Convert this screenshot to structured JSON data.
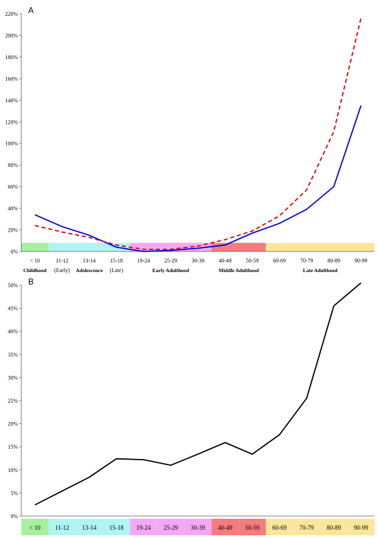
{
  "chart_data": [
    {
      "panel_label": "A",
      "type": "line",
      "x": [
        "< 10",
        "11-12",
        "13-14",
        "15-18",
        "19-24",
        "25-29",
        "30-39",
        "40-49",
        "50-59",
        "60-69",
        "70-79",
        "80-89",
        "90-99"
      ],
      "x_sub": [
        "",
        "(Early)",
        "",
        "(Late)",
        "",
        "",
        "",
        "",
        "",
        "",
        "",
        "",
        ""
      ],
      "groups": [
        {
          "label": "Childhood",
          "start": 0,
          "end": 0,
          "color": "#a8f0a0"
        },
        {
          "label": "Adolescence",
          "start": 1,
          "end": 3,
          "color": "#b0f4f4"
        },
        {
          "label": "Early Adulthood",
          "start": 4,
          "end": 6,
          "color": "#f4a8f4"
        },
        {
          "label": "Middle Adulthood",
          "start": 7,
          "end": 8,
          "color": "#f47c7c"
        },
        {
          "label": "Late Adulthood",
          "start": 9,
          "end": 12,
          "color": "#fbe69a"
        }
      ],
      "series": [
        {
          "color": "#0000dd",
          "style": "solid",
          "values": [
            34,
            23,
            15,
            4,
            0,
            1,
            3,
            6,
            17,
            26,
            39,
            60,
            135
          ]
        },
        {
          "color": "#dd0000",
          "style": "dashed",
          "values": [
            24,
            18,
            13,
            6,
            2,
            2,
            5,
            11,
            19,
            33,
            57,
            111,
            216
          ]
        }
      ],
      "ylim": [
        0,
        220
      ],
      "yticks": [
        "0%",
        "20%",
        "40%",
        "60%",
        "80%",
        "100%",
        "120%",
        "140%",
        "160%",
        "180%",
        "200%",
        "220%"
      ],
      "ytick_values": [
        0,
        20,
        40,
        60,
        80,
        100,
        120,
        140,
        160,
        180,
        200,
        220
      ],
      "grid": false
    },
    {
      "panel_label": "B",
      "type": "line",
      "x": [
        "< 10",
        "11-12",
        "13-14",
        "15-18",
        "19-24",
        "25-29",
        "30-39",
        "40-49",
        "50-59",
        "60-69",
        "70-79",
        "80-89",
        "90-99"
      ],
      "category_colors": [
        "#a8f0a0",
        "#b0f4f4",
        "#b0f4f4",
        "#b0f4f4",
        "#f4a8f4",
        "#f4a8f4",
        "#f4a8f4",
        "#f47c7c",
        "#f47c7c",
        "#fbe69a",
        "#fbe69a",
        "#fbe69a",
        "#fbe69a"
      ],
      "series": [
        {
          "color": "#000000",
          "style": "solid",
          "values": [
            2.4,
            5.4,
            8.4,
            12.4,
            12.2,
            11.0,
            13.4,
            15.9,
            13.4,
            17.6,
            25.5,
            45.5,
            50.5
          ]
        }
      ],
      "ylim": [
        0,
        50
      ],
      "yticks": [
        "0%",
        "5%",
        "10%",
        "15%",
        "20%",
        "25%",
        "30%",
        "35%",
        "40%",
        "45%",
        "50%"
      ],
      "ytick_values": [
        0,
        5,
        10,
        15,
        20,
        25,
        30,
        35,
        40,
        45,
        50
      ],
      "grid": false
    }
  ]
}
